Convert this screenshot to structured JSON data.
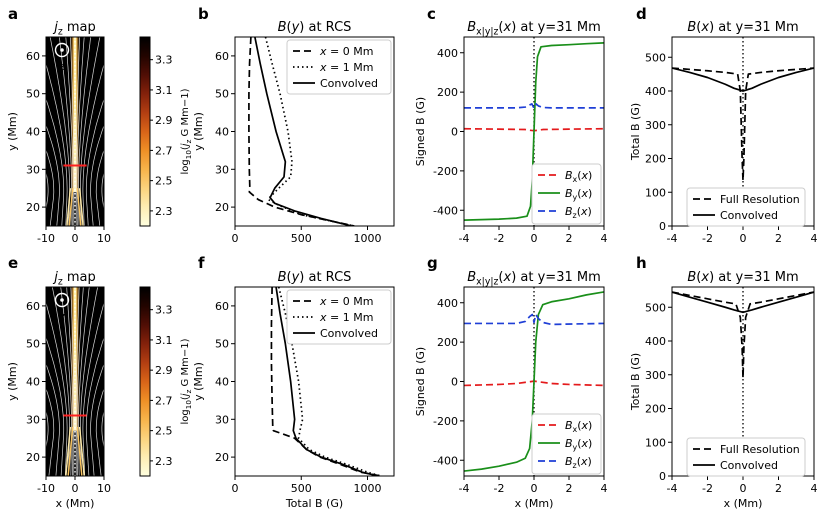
{
  "figure": {
    "panel_letters": [
      "a",
      "b",
      "c",
      "d",
      "e",
      "f",
      "g",
      "h"
    ],
    "x_axis_label_mm": "x (Mm)",
    "x_axis_label_totalB": "Total B (G)",
    "z_label": "z",
    "colorbar_label": "log₁₀(j_z G Mm⁻¹)"
  },
  "colors": {
    "black": "#000000",
    "red": "#e41a1c",
    "green": "#1a8f1a",
    "blue": "#1f3fd6",
    "colormap": [
      "#ffffe0",
      "#fde9a8",
      "#f9c460",
      "#f39a2a",
      "#d86418",
      "#a83510",
      "#6a1408",
      "#2a0500",
      "#000000"
    ],
    "map_bg": "#000000",
    "field_line": "#ffffff",
    "cut_line": "#ff2020"
  },
  "chart_data": [
    {
      "panel": "a",
      "type": "heatmap",
      "title": "j_z map",
      "xlim": [
        -10,
        10
      ],
      "ylim": [
        15,
        65
      ],
      "xticks": [
        -10,
        0,
        10
      ],
      "yticks": [
        20,
        30,
        40,
        50,
        60
      ],
      "xlabel": "",
      "ylabel": "y (Mm)",
      "cut_y": 31,
      "cut_x_range": [
        -4,
        4
      ],
      "colorbar": {
        "vmin": 2.2,
        "vmax": 3.45,
        "ticks": [
          2.3,
          2.5,
          2.7,
          2.9,
          3.1,
          3.3
        ]
      }
    },
    {
      "panel": "b",
      "type": "line",
      "title": "B(y) at RCS",
      "xlim": [
        0,
        1200
      ],
      "ylim": [
        15,
        65
      ],
      "xticks": [
        0,
        500,
        1000
      ],
      "yticks": [
        20,
        30,
        40,
        50,
        60
      ],
      "xlabel": "",
      "ylabel": "y (Mm)",
      "legend": "top-right",
      "series": [
        {
          "name": "x = 0 Mm",
          "style": "dashed",
          "points": [
            [
              120,
              65
            ],
            [
              110,
              58
            ],
            [
              105,
              50
            ],
            [
              105,
              40
            ],
            [
              108,
              30
            ],
            [
              112,
              25
            ],
            [
              108,
              24
            ],
            [
              175,
              22
            ],
            [
              300,
              20
            ],
            [
              500,
              18
            ],
            [
              700,
              16.5
            ],
            [
              900,
              15
            ]
          ]
        },
        {
          "name": "x = 1 Mm",
          "style": "dotted",
          "points": [
            [
              230,
              65
            ],
            [
              280,
              58
            ],
            [
              340,
              50
            ],
            [
              400,
              40
            ],
            [
              430,
              32
            ],
            [
              420,
              28
            ],
            [
              330,
              25
            ],
            [
              260,
              22.5
            ],
            [
              250,
              22
            ],
            [
              330,
              20.5
            ],
            [
              500,
              18
            ],
            [
              700,
              16.5
            ],
            [
              900,
              15
            ]
          ]
        },
        {
          "name": "Convolved",
          "style": "solid",
          "points": [
            [
              150,
              65
            ],
            [
              190,
              58
            ],
            [
              240,
              50
            ],
            [
              310,
              40
            ],
            [
              380,
              32
            ],
            [
              370,
              28
            ],
            [
              300,
              25
            ],
            [
              265,
              22.5
            ],
            [
              300,
              21
            ],
            [
              450,
              19
            ],
            [
              650,
              17
            ],
            [
              880,
              15
            ]
          ]
        }
      ]
    },
    {
      "panel": "c",
      "type": "line",
      "title": "B_x|y|z(x) at y=31 Mm",
      "xlim": [
        -4,
        4
      ],
      "ylim": [
        -480,
        480
      ],
      "xticks": [
        -4,
        -2,
        0,
        2,
        4
      ],
      "yticks": [
        -400,
        -200,
        0,
        200,
        400
      ],
      "xlabel": "",
      "ylabel": "Signed B (G)",
      "vline_x": 0,
      "legend": "bottom-right",
      "series": [
        {
          "name": "B_x(x)",
          "color": "red",
          "style": "dashed",
          "points": [
            [
              -4,
              14
            ],
            [
              -2,
              12
            ],
            [
              -0.5,
              10
            ],
            [
              -0.2,
              6
            ],
            [
              0,
              4
            ],
            [
              0.2,
              6
            ],
            [
              0.5,
              10
            ],
            [
              2,
              12
            ],
            [
              4,
              14
            ]
          ]
        },
        {
          "name": "B_y(x)",
          "color": "green",
          "style": "solid",
          "points": [
            [
              -4,
              -450
            ],
            [
              -2,
              -445
            ],
            [
              -1,
              -440
            ],
            [
              -0.4,
              -430
            ],
            [
              -0.2,
              -380
            ],
            [
              -0.1,
              -250
            ],
            [
              0,
              0
            ],
            [
              0.1,
              250
            ],
            [
              0.2,
              380
            ],
            [
              0.4,
              430
            ],
            [
              1,
              437
            ],
            [
              2,
              441
            ],
            [
              3,
              446
            ],
            [
              4,
              450
            ]
          ]
        },
        {
          "name": "B_z(x)",
          "color": "blue",
          "style": "dashed",
          "points": [
            [
              -4,
              120
            ],
            [
              -1,
              120
            ],
            [
              -0.5,
              124
            ],
            [
              -0.25,
              135
            ],
            [
              -0.12,
              140
            ],
            [
              0,
              118
            ],
            [
              0.12,
              140
            ],
            [
              0.25,
              130
            ],
            [
              0.5,
              122
            ],
            [
              1,
              120
            ],
            [
              4,
              120
            ]
          ]
        }
      ]
    },
    {
      "panel": "d",
      "type": "line",
      "title": "B(x) at y=31 Mm",
      "xlim": [
        -4,
        4
      ],
      "ylim": [
        0,
        560
      ],
      "xticks": [
        -4,
        -2,
        0,
        2,
        4
      ],
      "yticks": [
        0,
        100,
        200,
        300,
        400,
        500
      ],
      "xlabel": "",
      "ylabel": "Total B (G)",
      "vline_x": 0,
      "legend": "bottom-right",
      "series": [
        {
          "name": "Full Resolution",
          "style": "dashed",
          "points": [
            [
              -4,
              468
            ],
            [
              -2,
              460
            ],
            [
              -1,
              455
            ],
            [
              -0.3,
              450
            ],
            [
              -0.15,
              400
            ],
            [
              -0.05,
              200
            ],
            [
              0,
              135
            ],
            [
              0.05,
              200
            ],
            [
              0.15,
              400
            ],
            [
              0.3,
              450
            ],
            [
              1,
              455
            ],
            [
              2,
              460
            ],
            [
              4,
              468
            ]
          ]
        },
        {
          "name": "Convolved",
          "style": "solid",
          "points": [
            [
              -4,
              468
            ],
            [
              -3,
              455
            ],
            [
              -2,
              440
            ],
            [
              -1,
              420
            ],
            [
              -0.5,
              408
            ],
            [
              0,
              400
            ],
            [
              0.5,
              408
            ],
            [
              1,
              420
            ],
            [
              2,
              440
            ],
            [
              3,
              455
            ],
            [
              4,
              468
            ]
          ]
        }
      ]
    },
    {
      "panel": "e",
      "type": "heatmap",
      "title": "j_z map",
      "xlim": [
        -10,
        10
      ],
      "ylim": [
        15,
        65
      ],
      "xticks": [
        -10,
        0,
        10
      ],
      "yticks": [
        20,
        30,
        40,
        50,
        60
      ],
      "xlabel": "x (Mm)",
      "ylabel": "y (Mm)",
      "cut_y": 31,
      "cut_x_range": [
        -4,
        4
      ],
      "colorbar": {
        "vmin": 2.2,
        "vmax": 3.45,
        "ticks": [
          2.3,
          2.5,
          2.7,
          2.9,
          3.1,
          3.3
        ]
      }
    },
    {
      "panel": "f",
      "type": "line",
      "title": "B(y) at RCS",
      "xlim": [
        0,
        1200
      ],
      "ylim": [
        15,
        65
      ],
      "xticks": [
        0,
        500,
        1000
      ],
      "yticks": [
        20,
        30,
        40,
        50,
        60
      ],
      "xlabel": "Total B (G)",
      "ylabel": "y (Mm)",
      "legend": "top-right",
      "series": [
        {
          "name": "x = 0 Mm",
          "style": "dashed",
          "points": [
            [
              280,
              65
            ],
            [
              275,
              55
            ],
            [
              275,
              45
            ],
            [
              280,
              35
            ],
            [
              285,
              28
            ],
            [
              290,
              27
            ],
            [
              450,
              25
            ],
            [
              540,
              22
            ],
            [
              640,
              20
            ],
            [
              800,
              18
            ],
            [
              950,
              16
            ],
            [
              1100,
              15
            ]
          ]
        },
        {
          "name": "x = 1 Mm",
          "style": "dotted",
          "points": [
            [
              330,
              65
            ],
            [
              380,
              58
            ],
            [
              430,
              50
            ],
            [
              480,
              40
            ],
            [
              510,
              30
            ],
            [
              490,
              27
            ],
            [
              480,
              25
            ],
            [
              560,
              22
            ],
            [
              680,
              20
            ],
            [
              850,
              18
            ],
            [
              1000,
              16
            ],
            [
              1100,
              15
            ]
          ]
        },
        {
          "name": "Convolved",
          "style": "solid",
          "points": [
            [
              310,
              65
            ],
            [
              340,
              58
            ],
            [
              380,
              50
            ],
            [
              420,
              40
            ],
            [
              450,
              30
            ],
            [
              440,
              27
            ],
            [
              460,
              25
            ],
            [
              540,
              22
            ],
            [
              650,
              20
            ],
            [
              820,
              18
            ],
            [
              960,
              16
            ],
            [
              1080,
              15
            ]
          ]
        }
      ]
    },
    {
      "panel": "g",
      "type": "line",
      "title": "B_x|y|z(x) at y=31 Mm",
      "xlim": [
        -4,
        4
      ],
      "ylim": [
        -480,
        480
      ],
      "xticks": [
        -4,
        -2,
        0,
        2,
        4
      ],
      "yticks": [
        -400,
        -200,
        0,
        200,
        400
      ],
      "xlabel": "x (Mm)",
      "ylabel": "Signed B (G)",
      "vline_x": 0,
      "legend": "bottom-right",
      "series": [
        {
          "name": "B_x(x)",
          "color": "red",
          "style": "dashed",
          "points": [
            [
              -4,
              -20
            ],
            [
              -2,
              -15
            ],
            [
              -1,
              -10
            ],
            [
              -0.3,
              -2
            ],
            [
              0,
              2
            ],
            [
              0.3,
              -2
            ],
            [
              1,
              -10
            ],
            [
              2,
              -15
            ],
            [
              4,
              -20
            ]
          ]
        },
        {
          "name": "B_y(x)",
          "color": "green",
          "style": "solid",
          "points": [
            [
              -4,
              -455
            ],
            [
              -3,
              -445
            ],
            [
              -2,
              -430
            ],
            [
              -1,
              -410
            ],
            [
              -0.5,
              -390
            ],
            [
              -0.25,
              -340
            ],
            [
              -0.1,
              -200
            ],
            [
              0,
              0
            ],
            [
              0.1,
              200
            ],
            [
              0.25,
              340
            ],
            [
              0.5,
              390
            ],
            [
              1,
              405
            ],
            [
              2,
              420
            ],
            [
              3,
              440
            ],
            [
              4,
              455
            ]
          ]
        },
        {
          "name": "B_z(x)",
          "color": "blue",
          "style": "dashed",
          "points": [
            [
              -4,
              295
            ],
            [
              -1,
              295
            ],
            [
              -0.5,
              305
            ],
            [
              -0.25,
              330
            ],
            [
              -0.1,
              340
            ],
            [
              0,
              300
            ],
            [
              0.1,
              340
            ],
            [
              0.25,
              320
            ],
            [
              0.5,
              300
            ],
            [
              1,
              290
            ],
            [
              4,
              295
            ]
          ]
        }
      ]
    },
    {
      "panel": "h",
      "type": "line",
      "title": "B(x) at y=31 Mm",
      "xlim": [
        -4,
        4
      ],
      "ylim": [
        0,
        560
      ],
      "xticks": [
        -4,
        -2,
        0,
        2,
        4
      ],
      "yticks": [
        0,
        100,
        200,
        300,
        400,
        500
      ],
      "xlabel": "x (Mm)",
      "ylabel": "Total B (G)",
      "vline_x": 0,
      "legend": "bottom-right",
      "series": [
        {
          "name": "Full Resolution",
          "style": "dashed",
          "points": [
            [
              -4,
              545
            ],
            [
              -3,
              535
            ],
            [
              -2,
              525
            ],
            [
              -1,
              515
            ],
            [
              -0.4,
              510
            ],
            [
              -0.15,
              470
            ],
            [
              -0.05,
              380
            ],
            [
              0,
              290
            ],
            [
              0.05,
              380
            ],
            [
              0.15,
              470
            ],
            [
              0.4,
              510
            ],
            [
              1,
              515
            ],
            [
              2,
              525
            ],
            [
              3,
              535
            ],
            [
              4,
              545
            ]
          ]
        },
        {
          "name": "Convolved",
          "style": "solid",
          "points": [
            [
              -4,
              545
            ],
            [
              -3,
              530
            ],
            [
              -2,
              515
            ],
            [
              -1,
              500
            ],
            [
              -0.5,
              492
            ],
            [
              0,
              485
            ],
            [
              0.5,
              492
            ],
            [
              1,
              500
            ],
            [
              2,
              515
            ],
            [
              3,
              530
            ],
            [
              4,
              545
            ]
          ]
        }
      ]
    }
  ]
}
